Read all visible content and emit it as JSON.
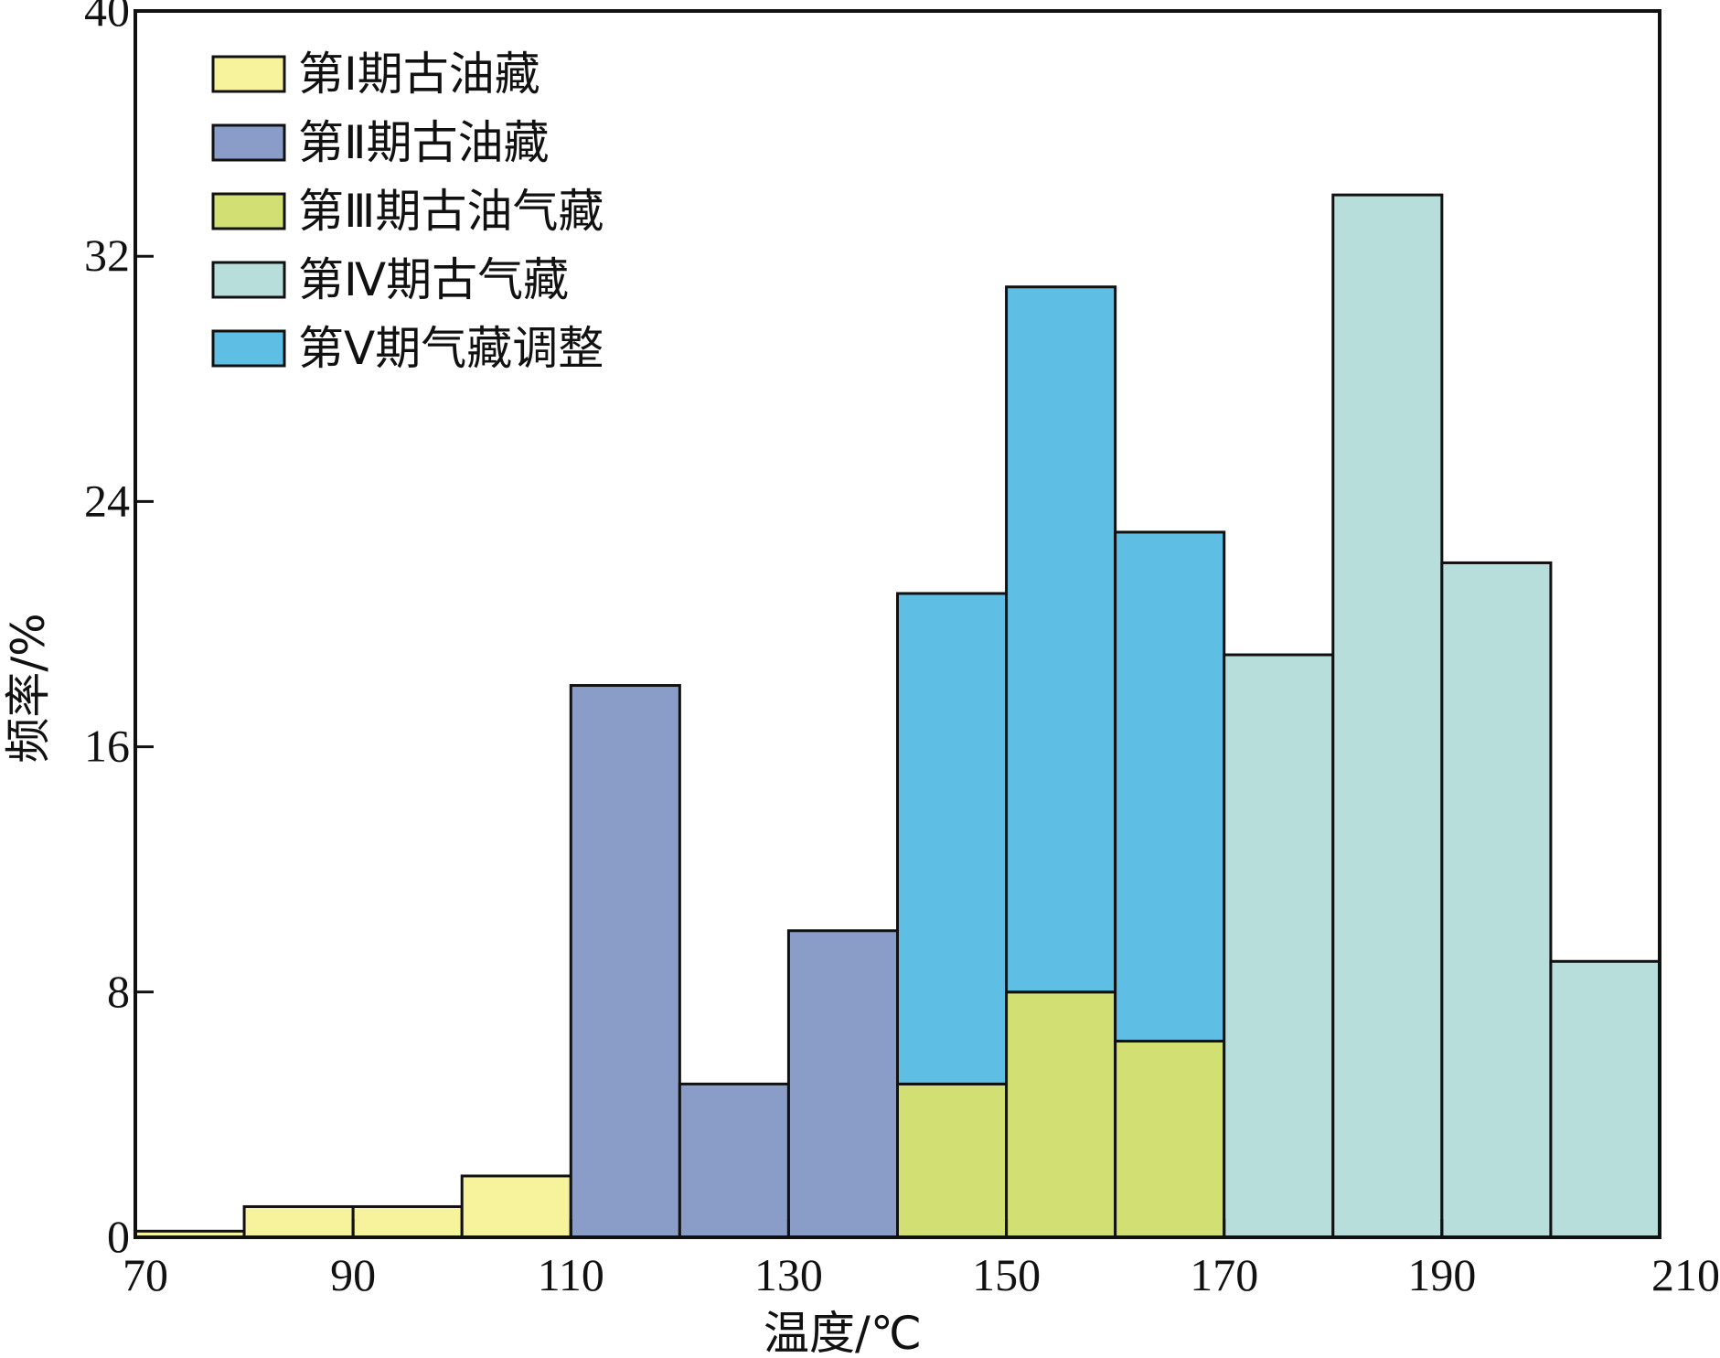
{
  "chart_data": {
    "type": "bar",
    "subtype": "stacked-histogram",
    "title": "",
    "xlabel": "温度/℃",
    "ylabel": "频率/%",
    "xlim": [
      70,
      210
    ],
    "ylim": [
      0,
      40
    ],
    "x_ticks": [
      "70",
      "90",
      "110",
      "130",
      "150",
      "170",
      "190",
      "210"
    ],
    "y_ticks": [
      "0",
      "8",
      "16",
      "24",
      "32",
      "40"
    ],
    "grid": false,
    "legend_position": "top-left",
    "bin_width": 10,
    "bins": [
      70,
      80,
      90,
      100,
      110,
      120,
      130,
      140,
      150,
      160,
      170,
      180,
      190,
      200
    ],
    "series": [
      {
        "name": "第Ⅰ期古油藏",
        "color": "#F7F29C",
        "values": [
          0.2,
          1,
          1,
          2,
          0,
          0,
          0,
          0,
          0,
          0,
          0,
          0,
          0,
          0
        ]
      },
      {
        "name": "第Ⅱ期古油藏",
        "color": "#8A9DC9",
        "values": [
          0,
          0,
          0,
          0,
          18,
          5,
          10,
          0,
          0,
          0,
          0,
          0,
          0,
          0
        ]
      },
      {
        "name": "第Ⅲ期古油气藏",
        "color": "#D1DF73",
        "values": [
          0,
          0,
          0,
          0,
          0,
          0,
          0,
          5,
          8,
          6.4,
          0,
          0,
          0,
          0
        ]
      },
      {
        "name": "第Ⅳ期古气藏",
        "color": "#B7DEDB",
        "values": [
          0,
          0,
          0,
          0,
          0,
          0,
          0,
          0,
          0,
          0,
          19,
          34,
          22,
          9
        ]
      },
      {
        "name": "第Ⅴ期气藏调整",
        "color": "#5FBEE4",
        "values": [
          0,
          0,
          0,
          0,
          0,
          0,
          0,
          16,
          23,
          16.6,
          0,
          0,
          0,
          0
        ]
      }
    ]
  }
}
